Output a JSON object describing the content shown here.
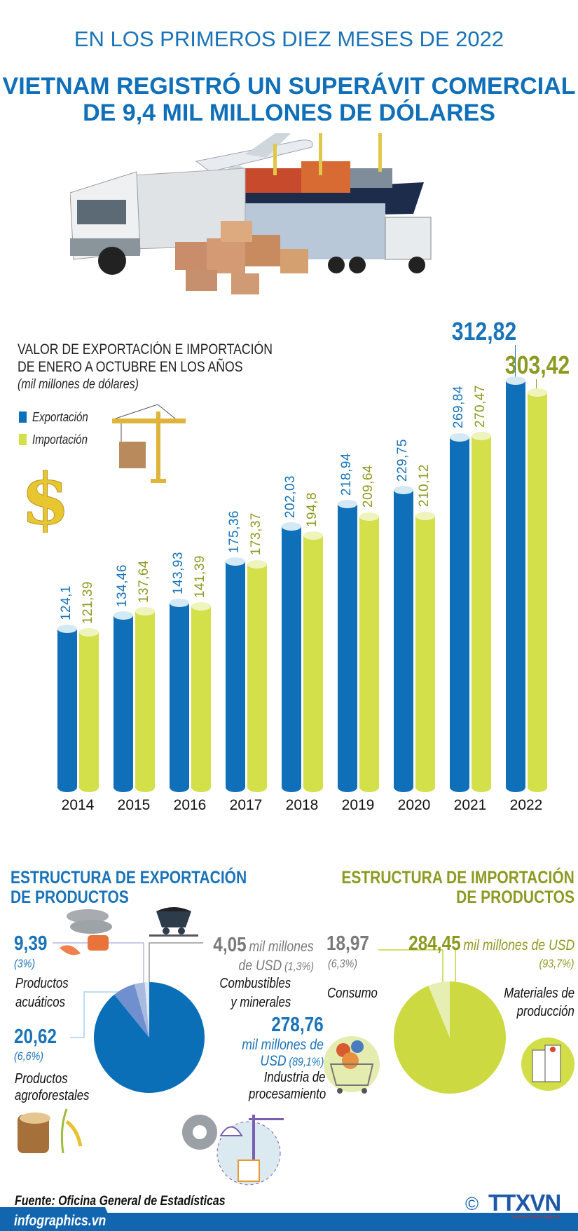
{
  "header": {
    "kicker": "EN LOS PRIMEROS DIEZ MESES DE 2022",
    "title_line1": "VIETNAM REGISTRÓ UN SUPERÁVIT COMERCIAL",
    "title_line2": "DE 9,4 MIL MILLONES DE DÓLARES"
  },
  "colors": {
    "export": "#0f6fb9",
    "import": "#d3e04a",
    "export_label": "#1a73b8",
    "import_label": "#8c9a22"
  },
  "chart_data": [
    {
      "type": "bar",
      "title_line1": "VALOR DE EXPORTACIÓN E IMPORTACIÓN",
      "title_line2": "DE ENERO A OCTUBRE EN LOS AÑOS",
      "subtitle": "(mil millones de dólares)",
      "legend_placement": "top-left",
      "grid": false,
      "categories": [
        "2014",
        "2015",
        "2016",
        "2017",
        "2018",
        "2019",
        "2020",
        "2021",
        "2022"
      ],
      "series": [
        {
          "name": "Exportación",
          "color": "#0f6fb9",
          "values": [
            124.1,
            134.46,
            143.93,
            175.36,
            202.03,
            218.94,
            229.75,
            269.84,
            312.82
          ],
          "labels": [
            "124,1",
            "134,46",
            "143,93",
            "175,36",
            "202,03",
            "218,94",
            "229,75",
            "269,84",
            "312,82"
          ]
        },
        {
          "name": "Importación",
          "color": "#d3e04a",
          "values": [
            121.39,
            137.64,
            141.39,
            173.37,
            194.8,
            209.64,
            210.12,
            270.47,
            303.42
          ],
          "labels": [
            "121,39",
            "137,64",
            "141,39",
            "173,37",
            "194,8",
            "209,64",
            "210,12",
            "270,47",
            "303,42"
          ]
        }
      ]
    },
    {
      "type": "pie",
      "title_line1": "ESTRUCTURA DE EXPORTACIÓN",
      "title_line2": "DE PRODUCTOS",
      "slices": [
        {
          "label_line1": "Industria de",
          "label_line2": "procesamiento",
          "value": 278.76,
          "value_label": "278,76",
          "unit_line1": "mil millones de",
          "unit_line2": "USD",
          "pct": "(89,1%)",
          "percent": 89.1,
          "color": "#0b6fb8"
        },
        {
          "label_line1": "Productos",
          "label_line2": "agroforestales",
          "value": 20.62,
          "value_label": "20,62",
          "pct": "(6,6%)",
          "percent": 6.6,
          "color": "#6f8fcf"
        },
        {
          "label_line1": "Productos",
          "label_line2": "acuáticos",
          "value": 9.39,
          "value_label": "9,39",
          "pct": "(3%)",
          "percent": 3,
          "color": "#a9badf"
        },
        {
          "label_line1": "Combustibles",
          "label_line2": "y minerales",
          "value": 4.05,
          "value_label": "4,05",
          "unit_line1": "mil millones",
          "unit_line2": "de USD",
          "pct": "(1,3%)",
          "percent": 1.3,
          "color": "#dde9f6"
        }
      ]
    },
    {
      "type": "pie",
      "title_line1": "ESTRUCTURA DE IMPORTACIÓN",
      "title_line2": "DE PRODUCTOS",
      "slices": [
        {
          "label_line1": "Materiales de",
          "label_line2": "producción",
          "value": 284.45,
          "value_label": "284,45",
          "unit_line1": "mil millones de USD",
          "pct": "(93,7%)",
          "percent": 93.7,
          "color": "#cdd940"
        },
        {
          "label_line1": "Consumo",
          "value": 18.97,
          "value_label": "18,97",
          "pct": "(6,3%)",
          "percent": 6.3,
          "color": "#e6eeb2"
        }
      ]
    }
  ],
  "footer": {
    "source": "Fuente: Oficina General de Estadísticas",
    "site": "infographics.vn",
    "copyright": "©",
    "logo_text": "TTXVN",
    "logo_sub": "Vietnam News Agency"
  }
}
